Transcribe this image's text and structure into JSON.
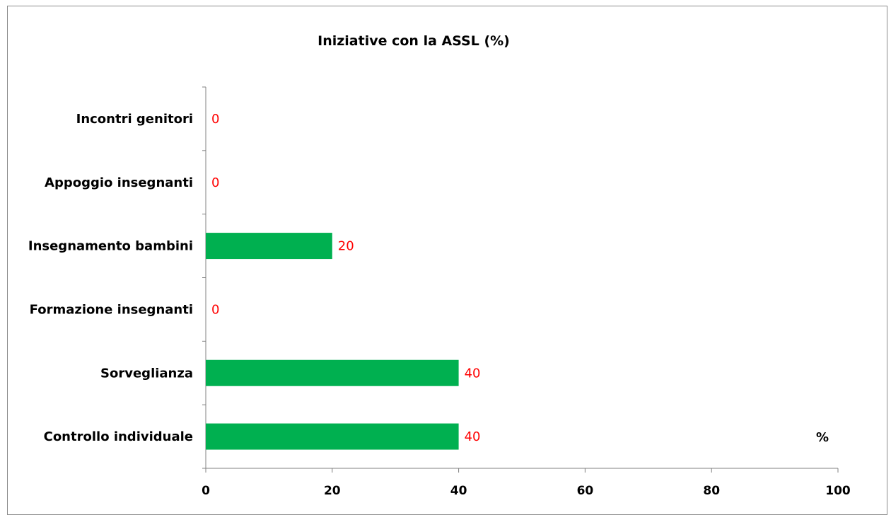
{
  "chart_data": {
    "type": "bar",
    "orientation": "horizontal",
    "title": "Iniziative con la ASSL (%)",
    "categories": [
      "Incontri genitori",
      "Appoggio insegnanti",
      "Insegnamento bambini",
      "Formazione insegnanti",
      "Sorveglianza",
      "Controllo individuale"
    ],
    "values": [
      0,
      0,
      20,
      0,
      40,
      40
    ],
    "value_labels": [
      "0",
      "0",
      "20",
      "0",
      "40",
      "40"
    ],
    "xlim": [
      0,
      100
    ],
    "xticks": [
      "0",
      "20",
      "40",
      "60",
      "80",
      "100"
    ],
    "unit_label": "%",
    "grid": false,
    "legend": "none",
    "colors": {
      "bar": "#00b050",
      "data_label": "#ff0000",
      "axis": "#808080"
    }
  }
}
